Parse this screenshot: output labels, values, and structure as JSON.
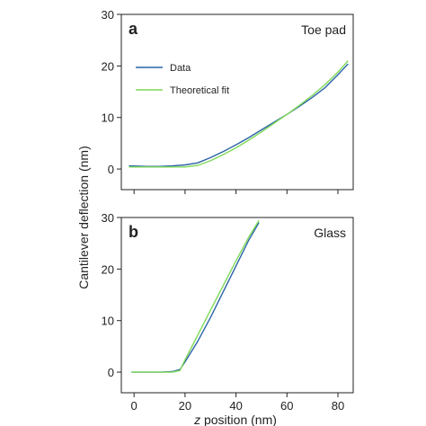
{
  "colors": {
    "data": "#2b63a6",
    "fit": "#7ed957",
    "axis": "#222222"
  },
  "ylabel": "Cantilever deflection (nm)",
  "xlabel_italic": "z",
  "xlabel_rest": " position (nm)",
  "chart_data": [
    {
      "type": "line",
      "panel": "a",
      "title": "Toe pad",
      "xlim": [
        -5,
        86
      ],
      "ylim": [
        -4,
        30
      ],
      "xticks": [
        0,
        20,
        40,
        60,
        80
      ],
      "yticks": [
        0,
        10,
        20,
        30
      ],
      "x_tick_labels_shown": false,
      "legend": {
        "placement": "top-left"
      },
      "series": [
        {
          "name": "Data",
          "color_key": "data",
          "x": [
            -2,
            5,
            10,
            15,
            20,
            25,
            30,
            35,
            40,
            45,
            50,
            55,
            60,
            65,
            70,
            75,
            80,
            84
          ],
          "y": [
            0.6,
            0.5,
            0.5,
            0.6,
            0.8,
            1.2,
            2.2,
            3.4,
            4.7,
            6.1,
            7.6,
            9.1,
            10.6,
            12.2,
            13.9,
            15.8,
            18.3,
            20.4
          ]
        },
        {
          "name": "Theoretical fit",
          "color_key": "fit",
          "x": [
            -2,
            5,
            10,
            15,
            20,
            25,
            30,
            35,
            40,
            45,
            50,
            55,
            60,
            65,
            70,
            75,
            80,
            84
          ],
          "y": [
            0.4,
            0.4,
            0.4,
            0.4,
            0.4,
            0.7,
            1.6,
            2.8,
            4.1,
            5.6,
            7.2,
            8.9,
            10.6,
            12.4,
            14.3,
            16.4,
            18.8,
            21.0
          ]
        }
      ]
    },
    {
      "type": "line",
      "panel": "b",
      "title": "Glass",
      "xlim": [
        -5,
        86
      ],
      "ylim": [
        -4,
        30
      ],
      "xticks": [
        0,
        20,
        40,
        60,
        80
      ],
      "yticks": [
        0,
        10,
        20,
        30
      ],
      "x_tick_labels_shown": true,
      "series": [
        {
          "name": "",
          "color_key": "data",
          "x": [
            -1,
            5,
            10,
            15,
            18,
            20,
            25,
            30,
            35,
            40,
            45,
            49
          ],
          "y": [
            0,
            0,
            0,
            0.1,
            0.5,
            2.0,
            6.0,
            10.6,
            15.6,
            20.6,
            25.6,
            29.0
          ]
        },
        {
          "name": "",
          "color_key": "fit",
          "x": [
            -1,
            5,
            10,
            15,
            18,
            20,
            25,
            30,
            35,
            40,
            45,
            49
          ],
          "y": [
            0,
            0,
            0,
            0,
            0.3,
            2.4,
            7.2,
            12.0,
            16.8,
            21.6,
            26.2,
            29.4
          ]
        }
      ]
    }
  ]
}
